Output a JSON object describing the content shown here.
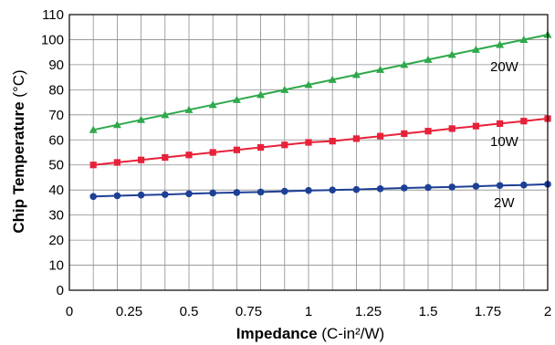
{
  "chart_data": {
    "type": "line",
    "title": "",
    "xlabel": {
      "bold": "Impedance",
      "rest": " (C-in²/W)"
    },
    "ylabel": {
      "bold": "Chip Temperature",
      "rest": " (°C)"
    },
    "xlim": [
      0,
      2
    ],
    "ylim": [
      0,
      110
    ],
    "xticks": [
      "0",
      "0.25",
      "0.5",
      "0.75",
      "1",
      "1.25",
      "1.5",
      "1.75",
      "2"
    ],
    "yticks": [
      "0",
      "10",
      "20",
      "30",
      "40",
      "50",
      "60",
      "70",
      "80",
      "90",
      "100",
      "110"
    ],
    "grid": true,
    "legend": "none",
    "series": [
      {
        "name": "20W",
        "color": "#2ea84a",
        "marker": "triangle",
        "x": [
          0.1,
          0.2,
          0.3,
          0.4,
          0.5,
          0.6,
          0.7,
          0.8,
          0.9,
          1.0,
          1.1,
          1.2,
          1.3,
          1.4,
          1.5,
          1.6,
          1.7,
          1.8,
          1.9,
          2.0
        ],
        "y": [
          64,
          66,
          68,
          70,
          72,
          74,
          76,
          78,
          80,
          82,
          84,
          86,
          88,
          90,
          92,
          94,
          96,
          98,
          100,
          102
        ]
      },
      {
        "name": "10W",
        "color": "#e8213a",
        "marker": "square",
        "x": [
          0.1,
          0.2,
          0.3,
          0.4,
          0.5,
          0.6,
          0.7,
          0.8,
          0.9,
          1.0,
          1.1,
          1.2,
          1.3,
          1.4,
          1.5,
          1.6,
          1.7,
          1.8,
          1.9,
          2.0
        ],
        "y": [
          50,
          51,
          52,
          53,
          54,
          55,
          56,
          57,
          58,
          59,
          59.5,
          60.5,
          61.5,
          62.5,
          63.5,
          64.5,
          65.5,
          66.5,
          67.5,
          68.5
        ]
      },
      {
        "name": "2W",
        "color": "#1d3f95",
        "marker": "circle",
        "x": [
          0.1,
          0.2,
          0.3,
          0.4,
          0.5,
          0.6,
          0.7,
          0.8,
          0.9,
          1.0,
          1.1,
          1.2,
          1.3,
          1.4,
          1.5,
          1.6,
          1.7,
          1.8,
          1.9,
          2.0
        ],
        "y": [
          37.4,
          37.7,
          38.0,
          38.2,
          38.5,
          38.8,
          39.0,
          39.2,
          39.5,
          39.8,
          40.0,
          40.2,
          40.5,
          40.8,
          41.0,
          41.2,
          41.5,
          41.8,
          42.0,
          42.3
        ]
      }
    ]
  }
}
